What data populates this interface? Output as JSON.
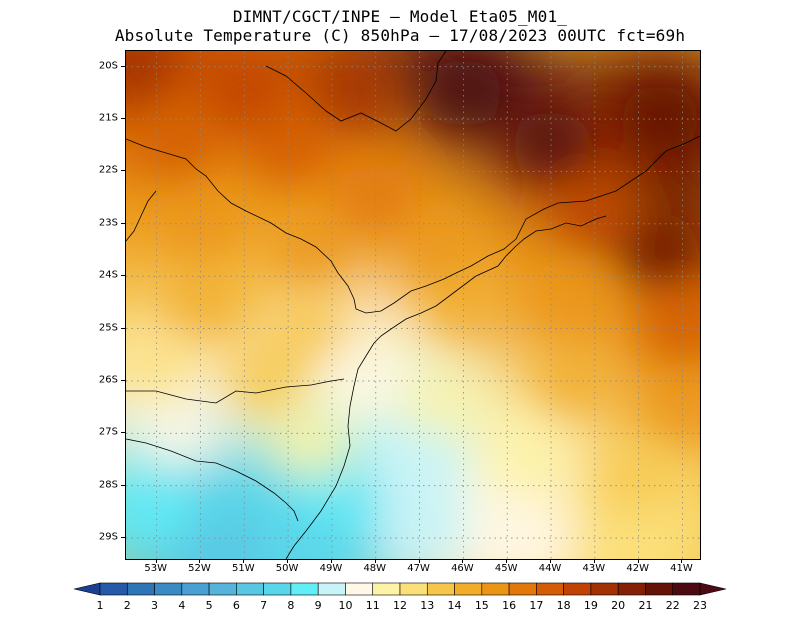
{
  "header": {
    "line1": "DIMNT/CGCT/INPE –  Model Eta05_M01_",
    "line2": "Absolute Temperature (C) 850hPa –  17/08/2023 00UTC fct=69h"
  },
  "axes": {
    "lat_labels": [
      "20S",
      "21S",
      "22S",
      "23S",
      "24S",
      "25S",
      "26S",
      "27S",
      "28S",
      "29S"
    ],
    "lat_values": [
      -20,
      -21,
      -22,
      -23,
      -24,
      -25,
      -26,
      -27,
      -28,
      -29
    ],
    "lon_labels": [
      "53W",
      "52W",
      "51W",
      "50W",
      "49W",
      "48W",
      "47W",
      "46W",
      "45W",
      "44W",
      "43W",
      "42W",
      "41W"
    ],
    "lon_values": [
      -53,
      -52,
      -51,
      -50,
      -49,
      -48,
      -47,
      -46,
      -45,
      -44,
      -43,
      -42,
      -41
    ],
    "lon_range": [
      -53.7,
      -40.6
    ],
    "lat_range": [
      -19.7,
      -29.4
    ],
    "grid": "dotted"
  },
  "colorbar": {
    "labels": [
      "1",
      "2",
      "3",
      "4",
      "5",
      "6",
      "7",
      "8",
      "9",
      "10",
      "11",
      "12",
      "13",
      "14",
      "15",
      "16",
      "17",
      "18",
      "19",
      "20",
      "21",
      "22",
      "23"
    ],
    "colors": [
      "#1c3f93",
      "#255aa8",
      "#2e75b6",
      "#3a8bc4",
      "#4aa0d0",
      "#56b4db",
      "#58c7e3",
      "#5ad6ea",
      "#62eef7",
      "#c8f4f8",
      "#fff8e6",
      "#fdf3a6",
      "#fbe07a",
      "#f6c64a",
      "#f1ad2a",
      "#eb9514",
      "#e2780a",
      "#d45c06",
      "#c04305",
      "#a23106",
      "#832006",
      "#651306",
      "#4e0a12"
    ]
  },
  "map": {
    "description_units": "temperature field in degrees C at 850hPa",
    "regions": [
      {
        "lon": -53.5,
        "lat": -20.0,
        "value": 20
      },
      {
        "lon": -51.0,
        "lat": -20.5,
        "value": 19
      },
      {
        "lon": -48.5,
        "lat": -20.5,
        "value": 20
      },
      {
        "lon": -46.0,
        "lat": -20.5,
        "value": 23
      },
      {
        "lon": -44.0,
        "lat": -21.5,
        "value": 23
      },
      {
        "lon": -41.5,
        "lat": -21.0,
        "value": 22
      },
      {
        "lon": -52.5,
        "lat": -21.5,
        "value": 18
      },
      {
        "lon": -50.0,
        "lat": -21.5,
        "value": 18
      },
      {
        "lon": -48.0,
        "lat": -22.5,
        "value": 17
      },
      {
        "lon": -52.0,
        "lat": -23.0,
        "value": 16
      },
      {
        "lon": -49.5,
        "lat": -23.5,
        "value": 16
      },
      {
        "lon": -46.5,
        "lat": -23.5,
        "value": 16
      },
      {
        "lon": -43.0,
        "lat": -22.8,
        "value": 19
      },
      {
        "lon": -41.5,
        "lat": -23.5,
        "value": 22
      },
      {
        "lon": -52.0,
        "lat": -24.5,
        "value": 15
      },
      {
        "lon": -49.5,
        "lat": -25.0,
        "value": 14
      },
      {
        "lon": -46.0,
        "lat": -24.5,
        "value": 15
      },
      {
        "lon": -43.5,
        "lat": -24.5,
        "value": 16
      },
      {
        "lon": -41.0,
        "lat": -25.0,
        "value": 18
      },
      {
        "lon": -53.0,
        "lat": -25.8,
        "value": 13
      },
      {
        "lon": -50.5,
        "lat": -26.0,
        "value": 14
      },
      {
        "lon": -48.2,
        "lat": -26.0,
        "value": 11
      },
      {
        "lon": -46.5,
        "lat": -26.5,
        "value": 12
      },
      {
        "lon": -43.5,
        "lat": -26.0,
        "value": 15
      },
      {
        "lon": -41.0,
        "lat": -26.5,
        "value": 16
      },
      {
        "lon": -52.5,
        "lat": -27.0,
        "value": 11
      },
      {
        "lon": -49.5,
        "lat": -27.2,
        "value": 12
      },
      {
        "lon": -47.0,
        "lat": -27.5,
        "value": 10
      },
      {
        "lon": -44.5,
        "lat": -27.5,
        "value": 12
      },
      {
        "lon": -42.0,
        "lat": -28.0,
        "value": 14
      },
      {
        "lon": -53.0,
        "lat": -28.5,
        "value": 9
      },
      {
        "lon": -51.0,
        "lat": -28.5,
        "value": 8
      },
      {
        "lon": -49.0,
        "lat": -28.5,
        "value": 9
      },
      {
        "lon": -47.0,
        "lat": -28.8,
        "value": 10
      },
      {
        "lon": -44.5,
        "lat": -29.0,
        "value": 11
      },
      {
        "lon": -42.0,
        "lat": -29.0,
        "value": 13
      },
      {
        "lon": -51.5,
        "lat": -29.3,
        "value": 7
      },
      {
        "lon": -49.5,
        "lat": -29.2,
        "value": 8
      }
    ]
  }
}
